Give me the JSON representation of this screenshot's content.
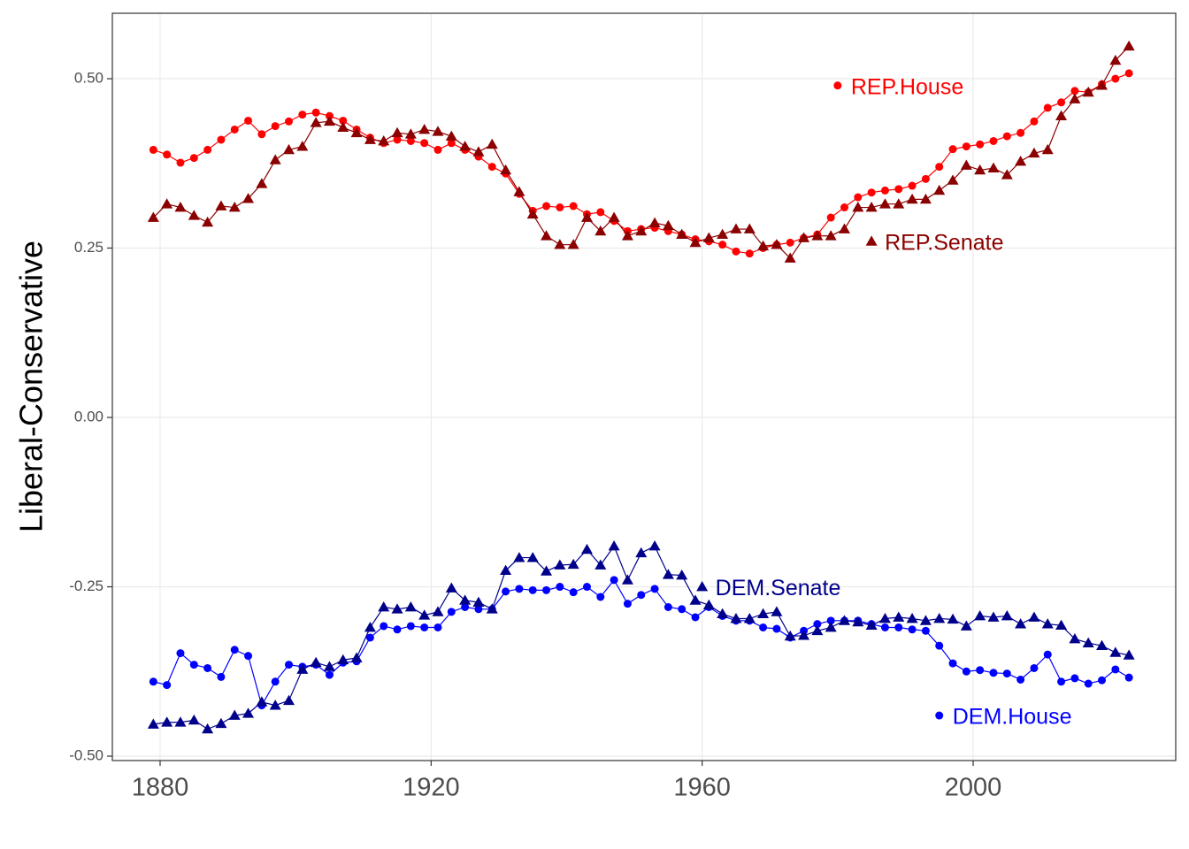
{
  "chart_data": {
    "type": "line",
    "y_label": "Liberal-Conservative",
    "xlim": [
      1872.95,
      2029.9
    ],
    "ylim": [
      -0.5065,
      0.5966
    ],
    "xticks": [
      1880,
      1920,
      1960,
      2000
    ],
    "yticks": [
      {
        "value": 0.5,
        "label": "0.50"
      },
      {
        "value": 0.25,
        "label": "0.25"
      },
      {
        "value": 0,
        "label": "0.00"
      },
      {
        "value": -0.25,
        "label": "-0.25"
      },
      {
        "value": -0.5,
        "label": "-0.50"
      }
    ],
    "grid": true,
    "x": [
      1879,
      1881,
      1883,
      1885,
      1887,
      1889,
      1891,
      1893,
      1895,
      1897,
      1899,
      1901,
      1903,
      1905,
      1907,
      1909,
      1911,
      1913,
      1915,
      1917,
      1919,
      1921,
      1923,
      1925,
      1927,
      1929,
      1931,
      1933,
      1935,
      1937,
      1939,
      1941,
      1943,
      1945,
      1947,
      1949,
      1951,
      1953,
      1955,
      1957,
      1959,
      1961,
      1963,
      1965,
      1967,
      1969,
      1971,
      1973,
      1975,
      1977,
      1979,
      1981,
      1983,
      1985,
      1987,
      1989,
      1991,
      1993,
      1995,
      1997,
      1999,
      2001,
      2003,
      2005,
      2007,
      2009,
      2011,
      2013,
      2015,
      2017,
      2019,
      2021,
      2023
    ],
    "series": [
      {
        "name": "REP.House",
        "color": "#ff0000",
        "marker": "circle",
        "label_at": [
          1980,
          0.49
        ],
        "values": [
          0.395,
          0.388,
          0.376,
          0.383,
          0.395,
          0.41,
          0.425,
          0.438,
          0.418,
          0.43,
          0.437,
          0.447,
          0.45,
          0.445,
          0.438,
          0.425,
          0.413,
          0.405,
          0.41,
          0.408,
          0.405,
          0.395,
          0.405,
          0.395,
          0.385,
          0.37,
          0.36,
          0.33,
          0.305,
          0.312,
          0.31,
          0.312,
          0.3,
          0.303,
          0.29,
          0.275,
          0.278,
          0.28,
          0.275,
          0.27,
          0.263,
          0.26,
          0.255,
          0.245,
          0.242,
          0.25,
          0.255,
          0.258,
          0.265,
          0.27,
          0.295,
          0.31,
          0.325,
          0.332,
          0.335,
          0.337,
          0.342,
          0.352,
          0.37,
          0.396,
          0.4,
          0.403,
          0.408,
          0.415,
          0.42,
          0.437,
          0.457,
          0.465,
          0.482,
          0.48,
          0.492,
          0.5,
          0.508
        ]
      },
      {
        "name": "REP.Senate",
        "color": "#8b0000",
        "marker": "triangle",
        "label_at": [
          1985,
          0.26
        ],
        "values": [
          0.295,
          0.315,
          0.31,
          0.298,
          0.288,
          0.312,
          0.31,
          0.323,
          0.345,
          0.38,
          0.395,
          0.4,
          0.435,
          0.437,
          0.428,
          0.42,
          0.41,
          0.408,
          0.42,
          0.418,
          0.425,
          0.422,
          0.415,
          0.4,
          0.392,
          0.403,
          0.365,
          0.333,
          0.3,
          0.268,
          0.255,
          0.255,
          0.295,
          0.275,
          0.295,
          0.268,
          0.275,
          0.287,
          0.283,
          0.27,
          0.258,
          0.265,
          0.27,
          0.278,
          0.278,
          0.253,
          0.255,
          0.235,
          0.265,
          0.268,
          0.268,
          0.278,
          0.31,
          0.31,
          0.315,
          0.315,
          0.322,
          0.322,
          0.335,
          0.35,
          0.372,
          0.365,
          0.368,
          0.358,
          0.378,
          0.39,
          0.395,
          0.445,
          0.47,
          0.48,
          0.49,
          0.527,
          0.548
        ]
      },
      {
        "name": "DEM.House",
        "color": "#0000ff",
        "marker": "circle",
        "label_at": [
          1995,
          -0.44
        ],
        "values": [
          -0.39,
          -0.395,
          -0.348,
          -0.365,
          -0.37,
          -0.383,
          -0.343,
          -0.352,
          -0.425,
          -0.39,
          -0.365,
          -0.368,
          -0.365,
          -0.38,
          -0.362,
          -0.36,
          -0.325,
          -0.308,
          -0.313,
          -0.308,
          -0.31,
          -0.31,
          -0.287,
          -0.28,
          -0.283,
          -0.283,
          -0.257,
          -0.253,
          -0.255,
          -0.255,
          -0.25,
          -0.258,
          -0.25,
          -0.265,
          -0.24,
          -0.275,
          -0.262,
          -0.253,
          -0.28,
          -0.283,
          -0.295,
          -0.28,
          -0.293,
          -0.3,
          -0.3,
          -0.31,
          -0.312,
          -0.325,
          -0.315,
          -0.305,
          -0.3,
          -0.3,
          -0.3,
          -0.305,
          -0.31,
          -0.31,
          -0.313,
          -0.315,
          -0.337,
          -0.363,
          -0.375,
          -0.373,
          -0.377,
          -0.378,
          -0.387,
          -0.37,
          -0.35,
          -0.39,
          -0.385,
          -0.393,
          -0.388,
          -0.372,
          -0.384
        ]
      },
      {
        "name": "DEM.Senate",
        "color": "#00008b",
        "marker": "triangle",
        "label_at": [
          1960,
          -0.25
        ],
        "values": [
          -0.453,
          -0.45,
          -0.45,
          -0.447,
          -0.46,
          -0.452,
          -0.44,
          -0.437,
          -0.42,
          -0.425,
          -0.418,
          -0.372,
          -0.362,
          -0.368,
          -0.358,
          -0.355,
          -0.31,
          -0.28,
          -0.283,
          -0.28,
          -0.292,
          -0.287,
          -0.252,
          -0.27,
          -0.273,
          -0.283,
          -0.226,
          -0.207,
          -0.207,
          -0.227,
          -0.218,
          -0.217,
          -0.195,
          -0.218,
          -0.19,
          -0.24,
          -0.2,
          -0.19,
          -0.232,
          -0.233,
          -0.27,
          -0.277,
          -0.29,
          -0.297,
          -0.297,
          -0.29,
          -0.287,
          -0.323,
          -0.322,
          -0.315,
          -0.31,
          -0.3,
          -0.302,
          -0.307,
          -0.297,
          -0.295,
          -0.297,
          -0.3,
          -0.297,
          -0.298,
          -0.308,
          -0.293,
          -0.295,
          -0.293,
          -0.305,
          -0.295,
          -0.305,
          -0.307,
          -0.327,
          -0.333,
          -0.337,
          -0.347,
          -0.351
        ]
      }
    ]
  }
}
